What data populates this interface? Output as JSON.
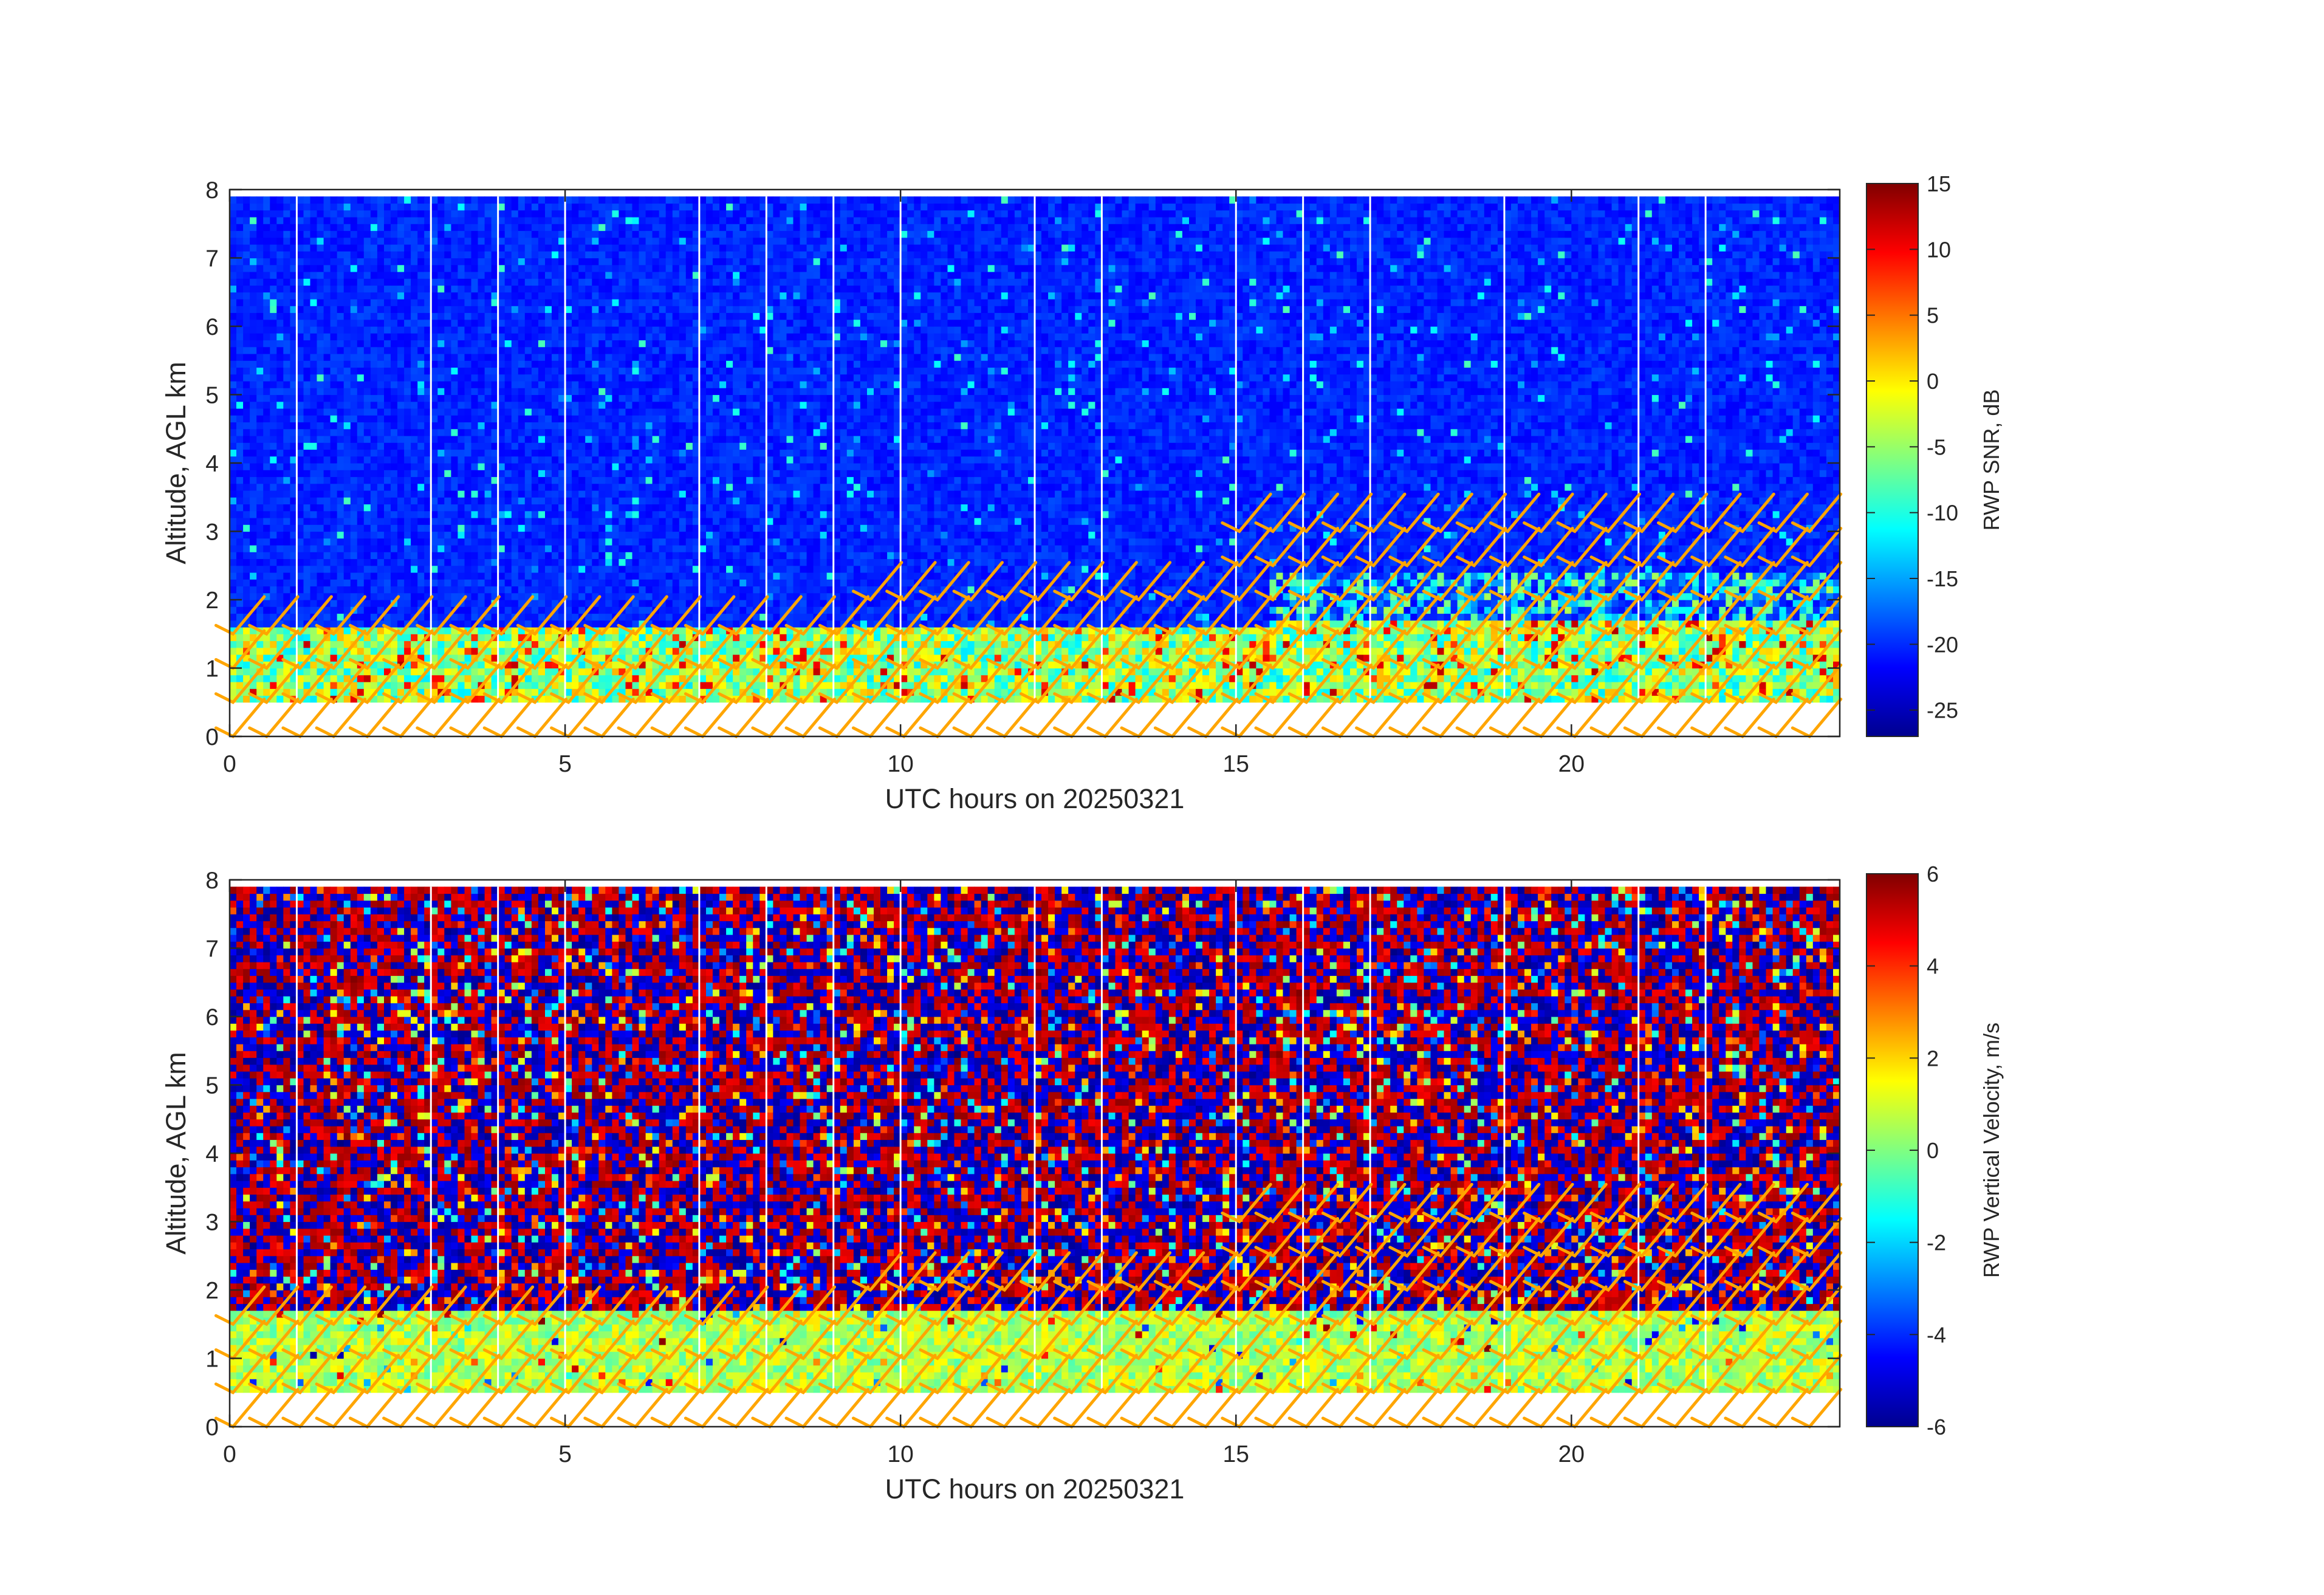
{
  "colormap": "jet",
  "colors": {
    "wind_barbs": "#ffa500",
    "axes": "#262626",
    "missing_data_lines": "#ffffff"
  },
  "chart_data": [
    {
      "type": "heatmap",
      "name": "snr-panel",
      "xlabel": "UTC hours on 20250321",
      "ylabel": "Altitude, AGL km",
      "xlim": [
        0,
        24
      ],
      "ylim": [
        0,
        8
      ],
      "xticks": [
        0,
        5,
        10,
        15,
        20
      ],
      "yticks": [
        0,
        1,
        2,
        3,
        4,
        5,
        6,
        7,
        8
      ],
      "data_altitude_range_km": [
        0.5,
        7.9
      ],
      "colorbar": {
        "label": "RWP SNR, dB",
        "range": [
          -27,
          15
        ],
        "ticks": [
          15,
          10,
          5,
          0,
          -5,
          -10,
          -15,
          -20,
          -25
        ]
      },
      "missing_profile_hours": [
        1,
        3,
        4,
        5,
        7,
        8,
        9,
        10,
        12,
        13,
        15,
        16,
        17,
        19,
        21,
        22
      ],
      "wind_barbs": "orange barbs at hourly and half-hourly times, altitudes 0-3 km"
    },
    {
      "type": "heatmap",
      "name": "vertical-velocity-panel",
      "xlabel": "UTC hours on 20250321",
      "ylabel": "Altitude, AGL km",
      "xlim": [
        0,
        24
      ],
      "ylim": [
        0,
        8
      ],
      "xticks": [
        0,
        5,
        10,
        15,
        20
      ],
      "yticks": [
        0,
        1,
        2,
        3,
        4,
        5,
        6,
        7,
        8
      ],
      "data_altitude_range_km": [
        0.5,
        7.9
      ],
      "colorbar": {
        "label": "RWP Vertical Velocity, m/s",
        "range": [
          -6,
          6
        ],
        "ticks": [
          6,
          4,
          2,
          0,
          -2,
          -4,
          -6
        ]
      },
      "missing_profile_hours": [
        1,
        3,
        4,
        5,
        7,
        8,
        9,
        10,
        12,
        13,
        15,
        16,
        17,
        19,
        21,
        22
      ],
      "wind_barbs": "orange barbs at hourly and half-hourly times, altitudes 0-3 km"
    }
  ],
  "text": {
    "xlabel": "UTC hours on 20250321",
    "ylabel": "Altitude, AGL km",
    "cb1_label": "RWP SNR, dB",
    "cb2_label": "RWP Vertical Velocity, m/s"
  }
}
